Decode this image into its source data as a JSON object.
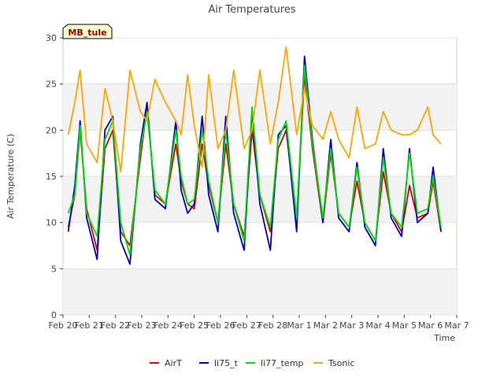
{
  "chart_data": {
    "type": "line",
    "title": "Air Temperatures",
    "xlabel": "Time",
    "ylabel": "Air Temperature (C)",
    "site_label": "MB_tule",
    "ylim": [
      0,
      30
    ],
    "yticks": [
      0,
      5,
      10,
      15,
      20,
      25,
      30
    ],
    "xlim": [
      0,
      15
    ],
    "xtick_labels": [
      "Feb 20",
      "Feb 21",
      "Feb 22",
      "Feb 23",
      "Feb 24",
      "Feb 25",
      "Feb 26",
      "Feb 27",
      "Feb 28",
      "Mar 1",
      "Mar 2",
      "Mar 3",
      "Mar 4",
      "Mar 5",
      "Mar 6",
      "Mar 7"
    ],
    "grid": "horizontal bands",
    "legend_position": "bottom",
    "x_days": [
      0.2,
      0.45,
      0.65,
      0.9,
      1.3,
      1.6,
      1.9,
      2.2,
      2.55,
      2.95,
      3.2,
      3.5,
      3.9,
      4.3,
      4.5,
      4.75,
      5.0,
      5.3,
      5.55,
      5.9,
      6.2,
      6.5,
      6.9,
      7.2,
      7.5,
      7.9,
      8.2,
      8.5,
      8.9,
      9.2,
      9.5,
      9.9,
      10.2,
      10.5,
      10.9,
      11.2,
      11.5,
      11.9,
      12.2,
      12.5,
      12.9,
      13.2,
      13.5,
      13.9,
      14.1,
      14.4
    ],
    "series": [
      {
        "name": "AirT",
        "color": "#dd0000",
        "values": [
          9.5,
          13.0,
          20.0,
          11.5,
          7.0,
          18.0,
          20.0,
          9.0,
          7.5,
          17.0,
          22.5,
          13.0,
          12.0,
          18.5,
          14.5,
          12.0,
          11.5,
          18.5,
          14.0,
          10.0,
          18.5,
          12.0,
          8.5,
          20.0,
          13.0,
          9.0,
          18.0,
          20.0,
          10.5,
          26.0,
          18.0,
          10.0,
          17.5,
          11.0,
          9.5,
          14.5,
          10.0,
          8.0,
          15.5,
          11.0,
          9.0,
          14.0,
          10.5,
          11.0,
          14.5,
          9.0
        ]
      },
      {
        "name": "li75_t",
        "color": "#0000cc",
        "values": [
          9.0,
          14.0,
          21.0,
          10.5,
          6.0,
          20.0,
          21.5,
          8.0,
          5.5,
          18.5,
          23.0,
          12.5,
          11.5,
          21.0,
          13.5,
          11.0,
          12.0,
          21.5,
          13.0,
          9.0,
          21.5,
          11.0,
          7.0,
          22.0,
          12.0,
          7.0,
          19.5,
          20.5,
          9.0,
          28.0,
          19.0,
          10.0,
          19.0,
          10.5,
          9.0,
          16.5,
          9.5,
          7.5,
          18.0,
          10.5,
          8.5,
          18.0,
          10.0,
          11.0,
          16.0,
          9.0
        ]
      },
      {
        "name": "li77_temp",
        "color": "#00dd00",
        "values": [
          11.0,
          13.0,
          20.5,
          11.0,
          8.5,
          19.0,
          21.0,
          10.0,
          6.5,
          18.0,
          22.0,
          13.5,
          12.0,
          20.0,
          15.0,
          12.0,
          12.5,
          20.0,
          14.5,
          10.0,
          20.0,
          12.0,
          8.0,
          22.5,
          13.0,
          9.5,
          19.0,
          21.0,
          10.5,
          27.0,
          18.5,
          10.5,
          18.0,
          11.0,
          9.5,
          16.0,
          10.0,
          8.0,
          17.0,
          11.0,
          9.5,
          17.5,
          11.0,
          11.5,
          15.0,
          9.5
        ]
      },
      {
        "name": "Tsonic",
        "color": "#ffa500",
        "values": [
          19.5,
          23.0,
          26.5,
          18.5,
          16.5,
          24.5,
          21.0,
          15.5,
          26.5,
          22.0,
          21.0,
          25.5,
          23.0,
          21.0,
          19.5,
          26.0,
          20.5,
          16.0,
          26.0,
          18.0,
          20.0,
          26.5,
          18.0,
          20.0,
          26.5,
          18.5,
          23.0,
          29.0,
          19.5,
          24.5,
          20.5,
          19.0,
          22.0,
          19.0,
          17.0,
          22.5,
          18.0,
          18.5,
          22.0,
          20.0,
          19.5,
          19.5,
          20.0,
          22.5,
          19.5,
          18.5
        ]
      }
    ]
  }
}
